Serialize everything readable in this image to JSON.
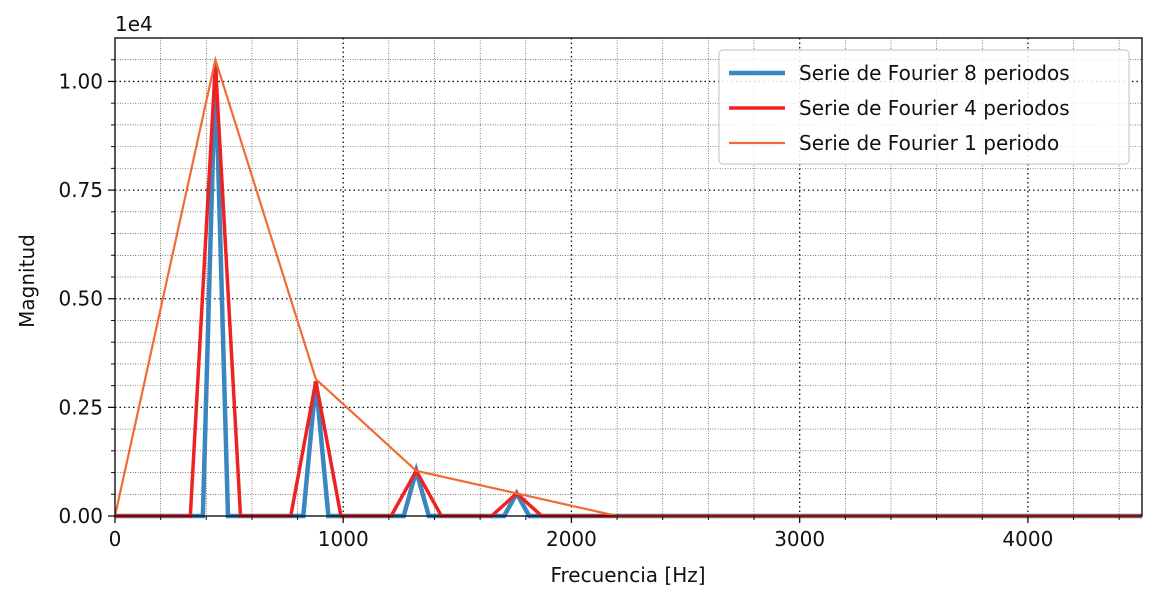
{
  "chart_data": {
    "type": "line",
    "title": "",
    "xlabel": "Frecuencia [Hz]",
    "ylabel": "Magnitud",
    "y_offset_label": "1e4",
    "xlim": [
      0,
      4500
    ],
    "ylim": [
      0,
      1.1
    ],
    "xticks": [
      0,
      1000,
      2000,
      3000,
      4000
    ],
    "xtick_labels": [
      "0",
      "1000",
      "2000",
      "3000",
      "4000"
    ],
    "yticks": [
      0,
      0.25,
      0.5,
      0.75,
      1.0
    ],
    "ytick_labels": [
      "0.00",
      "0.25",
      "0.50",
      "0.75",
      "1.00"
    ],
    "grid": true,
    "minor_grid": true,
    "legend_position": "top-right",
    "series": [
      {
        "name": "Serie de Fourier 8 periodos",
        "color": "#3a86bf",
        "x": [
          0,
          385,
          440,
          495,
          825,
          880,
          935,
          1265,
          1320,
          1375,
          1705,
          1760,
          1815,
          4500
        ],
        "y": [
          0,
          0,
          1.04,
          0,
          0,
          0.31,
          0,
          0,
          0.104,
          0,
          0,
          0.052,
          0,
          0
        ]
      },
      {
        "name": "Serie de Fourier 4 periodos",
        "color": "#ee2222",
        "x": [
          0,
          330,
          440,
          550,
          770,
          880,
          990,
          1210,
          1320,
          1430,
          1650,
          1760,
          1870,
          4500
        ],
        "y": [
          0,
          0,
          1.04,
          0,
          0,
          0.31,
          0,
          0,
          0.104,
          0,
          0,
          0.052,
          0,
          0
        ]
      },
      {
        "name": "Serie de Fourier 1 periodo",
        "color": "#f26b35",
        "x": [
          0,
          440,
          880,
          1320,
          1760,
          2200,
          4500
        ],
        "y": [
          0,
          1.05,
          0.315,
          0.104,
          0.052,
          0,
          0
        ]
      }
    ]
  }
}
